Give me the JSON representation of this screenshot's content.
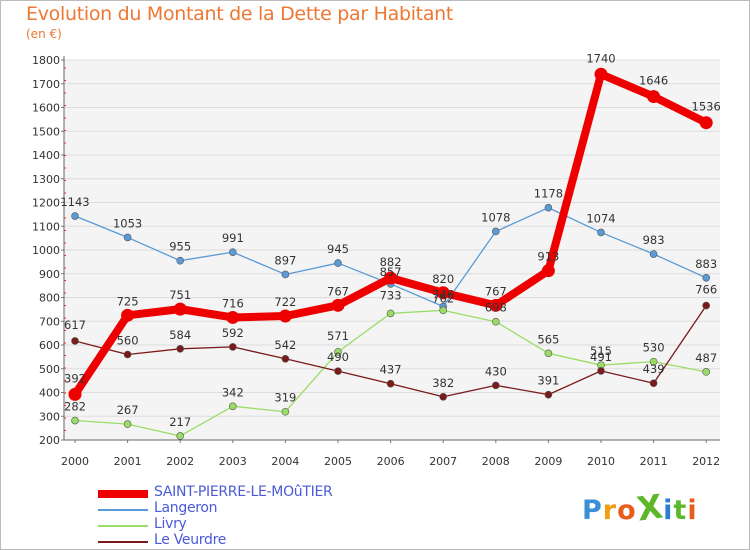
{
  "title": "Evolution du Montant de la Dette par Habitant",
  "subtitle": "(en €)",
  "brand": {
    "text": "ProXiti",
    "letters": [
      "P",
      "r",
      "o",
      "X",
      "i",
      "t",
      "i"
    ],
    "colors": [
      "#3a8fd6",
      "#f39c12",
      "#e85d1c",
      "#5cb82a",
      "#2c7fd0",
      "#5cb82a",
      "#e85d1c"
    ]
  },
  "chart_data": {
    "type": "line",
    "title": "Evolution du Montant de la Dette par Habitant",
    "subtitle": "(en €)",
    "x": [
      "2000",
      "2001",
      "2002",
      "2003",
      "2004",
      "2005",
      "2006",
      "2007",
      "2008",
      "2009",
      "2010",
      "2011",
      "2012"
    ],
    "ylim": [
      200,
      1800
    ],
    "yticks": [
      200,
      300,
      400,
      500,
      600,
      700,
      800,
      900,
      1000,
      1100,
      1200,
      1300,
      1400,
      1500,
      1600,
      1700,
      1800
    ],
    "grid": "horizontal",
    "legend_position": "bottom-left",
    "series": [
      {
        "name": "SAINT-PIERRE-LE-MOûTIER",
        "color": "#ee0000",
        "values": [
          392,
          725,
          751,
          716,
          722,
          767,
          882,
          820,
          767,
          913,
          1740,
          1646,
          1536
        ],
        "labels": [
          "392",
          "725",
          "751",
          "716",
          "722",
          "767",
          "882",
          "820",
          "767",
          "913",
          "1740",
          "1646",
          "1536"
        ]
      },
      {
        "name": "Langeron",
        "color": "#5b9bd5",
        "values": [
          1143,
          1053,
          955,
          991,
          897,
          945,
          857,
          762,
          1078,
          1178,
          1074,
          983,
          883
        ],
        "labels": [
          "1143",
          "1053",
          "955",
          "991",
          "897",
          "945",
          "857",
          "762",
          "1078",
          "1178",
          "1074",
          "983",
          "883"
        ]
      },
      {
        "name": "Livry",
        "color": "#99dd66",
        "values": [
          282,
          267,
          217,
          342,
          319,
          571,
          733,
          746,
          698,
          565,
          515,
          530,
          487
        ],
        "labels": [
          "282",
          "267",
          "217",
          "342",
          "319",
          "571",
          "733",
          "746",
          "698",
          "565",
          "515",
          "530",
          "487"
        ]
      },
      {
        "name": "Le Veurdre",
        "color": "#7a1a1a",
        "values": [
          617,
          560,
          584,
          592,
          542,
          490,
          437,
          382,
          430,
          391,
          491,
          439,
          766
        ],
        "labels": [
          "617",
          "560",
          "584",
          "592",
          "542",
          "490",
          "437",
          "382",
          "430",
          "391",
          "491",
          "439",
          "766"
        ]
      }
    ]
  }
}
